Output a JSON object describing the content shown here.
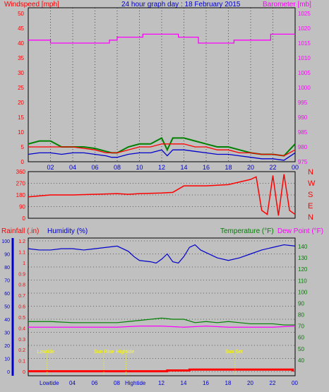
{
  "header": {
    "left": "Windspeed [mph]",
    "center": "24 hour graph day : 18 February 2015",
    "right": "Barometer [mb]"
  },
  "bottom_header": {
    "rainfall": "Rainfall (.in)",
    "humidity": "Humidity (%)",
    "temperature": "Temperature (°F)",
    "dewpoint": "Dew Point (°F)"
  },
  "compass": [
    "N",
    "W",
    "S",
    "E",
    "N"
  ],
  "tide_labels": {
    "lowtide": "Lowtide",
    "sunrise": "Sun Rise",
    "hightide": "Hightide",
    "sunset": "Sun Set",
    "axis_lowtide": "Lowtide",
    "axis_hightide": "Hightide"
  },
  "colors": {
    "wind_avg": "#0000cc",
    "wind_gust": "#008000",
    "wind_max": "#ff0000",
    "barometer": "#ff00ff",
    "direction": "#ff0000",
    "humidity": "#0000cc",
    "temperature": "#008000",
    "dewpoint": "#ff00ff",
    "rainfall": "#ff0000",
    "event_marker": "#ffff00"
  },
  "chart_data": [
    {
      "type": "line",
      "name": "wind_and_barometer",
      "x_ticks": [
        "02",
        "04",
        "06",
        "08",
        "10",
        "12",
        "14",
        "16",
        "18",
        "20",
        "22",
        "00"
      ],
      "ylabel_left": "Windspeed [mph]",
      "ylabel_right": "Barometer [mb]",
      "ylim_left": [
        0,
        50
      ],
      "yticks_left": [
        0,
        5,
        10,
        15,
        20,
        25,
        30,
        35,
        40,
        45,
        50
      ],
      "ylim_right": [
        975,
        1025
      ],
      "yticks_right": [
        975,
        980,
        985,
        990,
        995,
        1000,
        1005,
        1010,
        1015,
        1020,
        1025
      ],
      "series": [
        {
          "key": "barometer",
          "axis": "right",
          "x": [
            0,
            2,
            2.0,
            7.3,
            7.3,
            8.0,
            8.0,
            10.3,
            10.3,
            13.5,
            13.5,
            15.3,
            15.3,
            18.5,
            18.5,
            21.8,
            21.8,
            24
          ],
          "y": [
            1016,
            1016,
            1015,
            1015,
            1016,
            1016,
            1017,
            1017,
            1018,
            1018,
            1017,
            1017,
            1015,
            1015,
            1016,
            1016,
            1018,
            1018
          ]
        },
        {
          "key": "wind_avg",
          "axis": "left",
          "x": [
            0,
            1,
            2,
            3,
            4,
            5,
            6,
            7,
            7.5,
            8,
            9,
            10,
            11,
            12,
            12.5,
            13,
            14,
            15,
            16,
            17,
            18,
            19,
            20,
            21,
            22,
            23,
            24
          ],
          "y": [
            2.5,
            3,
            3,
            2.5,
            3,
            3,
            2.5,
            2,
            1.5,
            1.5,
            2.5,
            3,
            3,
            4,
            2,
            4,
            4,
            3.5,
            3,
            2.5,
            2.5,
            2,
            1.5,
            1,
            1,
            0.5,
            3
          ]
        },
        {
          "key": "wind_gust",
          "axis": "left",
          "x": [
            0,
            1,
            2,
            3,
            4,
            5,
            6,
            7,
            7.5,
            8,
            9,
            10,
            11,
            12,
            12.5,
            13,
            14,
            15,
            16,
            17,
            18,
            19,
            20,
            21,
            22,
            23,
            24
          ],
          "y": [
            6,
            7,
            7,
            5,
            5,
            5,
            4.5,
            3.5,
            3,
            3,
            5,
            6,
            6,
            8,
            4,
            8,
            8,
            7,
            6,
            5,
            5,
            4,
            3,
            2.5,
            2.5,
            2,
            6
          ]
        },
        {
          "key": "wind_max",
          "axis": "left",
          "x": [
            0,
            2,
            4,
            6,
            7,
            8,
            9,
            10,
            11,
            12,
            13,
            14,
            15,
            16,
            17,
            18,
            19,
            20,
            21,
            22,
            23,
            24
          ],
          "y": [
            5,
            5,
            5,
            4,
            3,
            3,
            4,
            5,
            5,
            6,
            6,
            6,
            5,
            5,
            4,
            4,
            3,
            3,
            2.5,
            2.5,
            2,
            4
          ]
        }
      ]
    },
    {
      "type": "line",
      "name": "wind_direction",
      "ylim": [
        0,
        360
      ],
      "yticks": [
        0,
        90,
        180,
        270,
        360
      ],
      "series": [
        {
          "key": "direction",
          "x": [
            0,
            2,
            4,
            6,
            8,
            9,
            10,
            12,
            13,
            14,
            16,
            18,
            20,
            20.5,
            21,
            21.5,
            22,
            22.5,
            23,
            23.5,
            24
          ],
          "y": [
            165,
            180,
            180,
            185,
            190,
            185,
            190,
            195,
            200,
            250,
            250,
            260,
            300,
            320,
            60,
            30,
            330,
            20,
            340,
            60,
            30
          ]
        }
      ]
    },
    {
      "type": "line",
      "name": "rain_humidity_temperature",
      "ylim_left": [
        0,
        100
      ],
      "yticks_left": [
        0,
        10,
        20,
        30,
        40,
        50,
        60,
        70,
        80,
        90,
        100
      ],
      "rain_ticks": [
        "0",
        "0.1",
        "0.2",
        "0.3",
        "0.4",
        "0.5",
        "0.6",
        "0.7",
        "0.8",
        "0.9",
        "1",
        "1.1",
        "1.2"
      ],
      "ylim_right": [
        30,
        145
      ],
      "yticks_right": [
        40,
        50,
        60,
        70,
        80,
        90,
        100,
        110,
        120,
        130,
        140
      ],
      "x_ticks": [
        "04",
        "06",
        "08",
        "12",
        "14",
        "16",
        "18",
        "20",
        "22",
        "00"
      ],
      "series": [
        {
          "key": "humidity",
          "axis": "left",
          "x": [
            0,
            1,
            2,
            3,
            4,
            5,
            6,
            7,
            8,
            9,
            9.5,
            10,
            11,
            11.5,
            12,
            12.5,
            13,
            13.5,
            14,
            14.5,
            15,
            15.5,
            16,
            17,
            18,
            19,
            20,
            21,
            22,
            23,
            24
          ],
          "y": [
            94,
            93,
            93,
            94,
            94,
            93,
            94,
            95,
            96,
            92,
            88,
            85,
            84,
            83,
            86,
            90,
            84,
            83,
            88,
            95,
            97,
            93,
            91,
            87,
            85,
            87,
            90,
            93,
            95,
            97,
            96
          ]
        },
        {
          "key": "temperature",
          "axis": "right",
          "x": [
            0,
            2,
            4,
            6,
            7,
            8,
            9,
            10,
            11,
            12,
            13,
            14,
            15,
            16,
            17,
            18,
            19,
            20,
            21,
            22,
            23,
            24
          ],
          "y": [
            74,
            74,
            73,
            73,
            73,
            73,
            74,
            75,
            76,
            77,
            76,
            76,
            73,
            74,
            73,
            74,
            73,
            72,
            72,
            72,
            71,
            71
          ]
        },
        {
          "key": "dewpoint",
          "axis": "right",
          "x": [
            0,
            2,
            4,
            6,
            8,
            10,
            12,
            14,
            16,
            18,
            20,
            22,
            24
          ],
          "y": [
            69,
            69,
            69,
            69,
            69,
            70,
            70,
            69,
            70,
            69,
            69,
            69,
            70
          ]
        },
        {
          "key": "rainfall",
          "axis": "left",
          "x": [
            0,
            12.5,
            12.5,
            14.5,
            14.5,
            23.8,
            23.8
          ],
          "y": [
            0.2,
            0.2,
            0.8,
            0.8,
            1.5,
            1.5,
            0
          ]
        }
      ],
      "events": [
        {
          "label_key": "lowtide",
          "x": 1.7
        },
        {
          "label_key": "sunrise",
          "x": 6.8
        },
        {
          "label_key": "hightide",
          "x": 8.8
        },
        {
          "label_key": "sunset",
          "x": 18.6
        }
      ]
    }
  ]
}
